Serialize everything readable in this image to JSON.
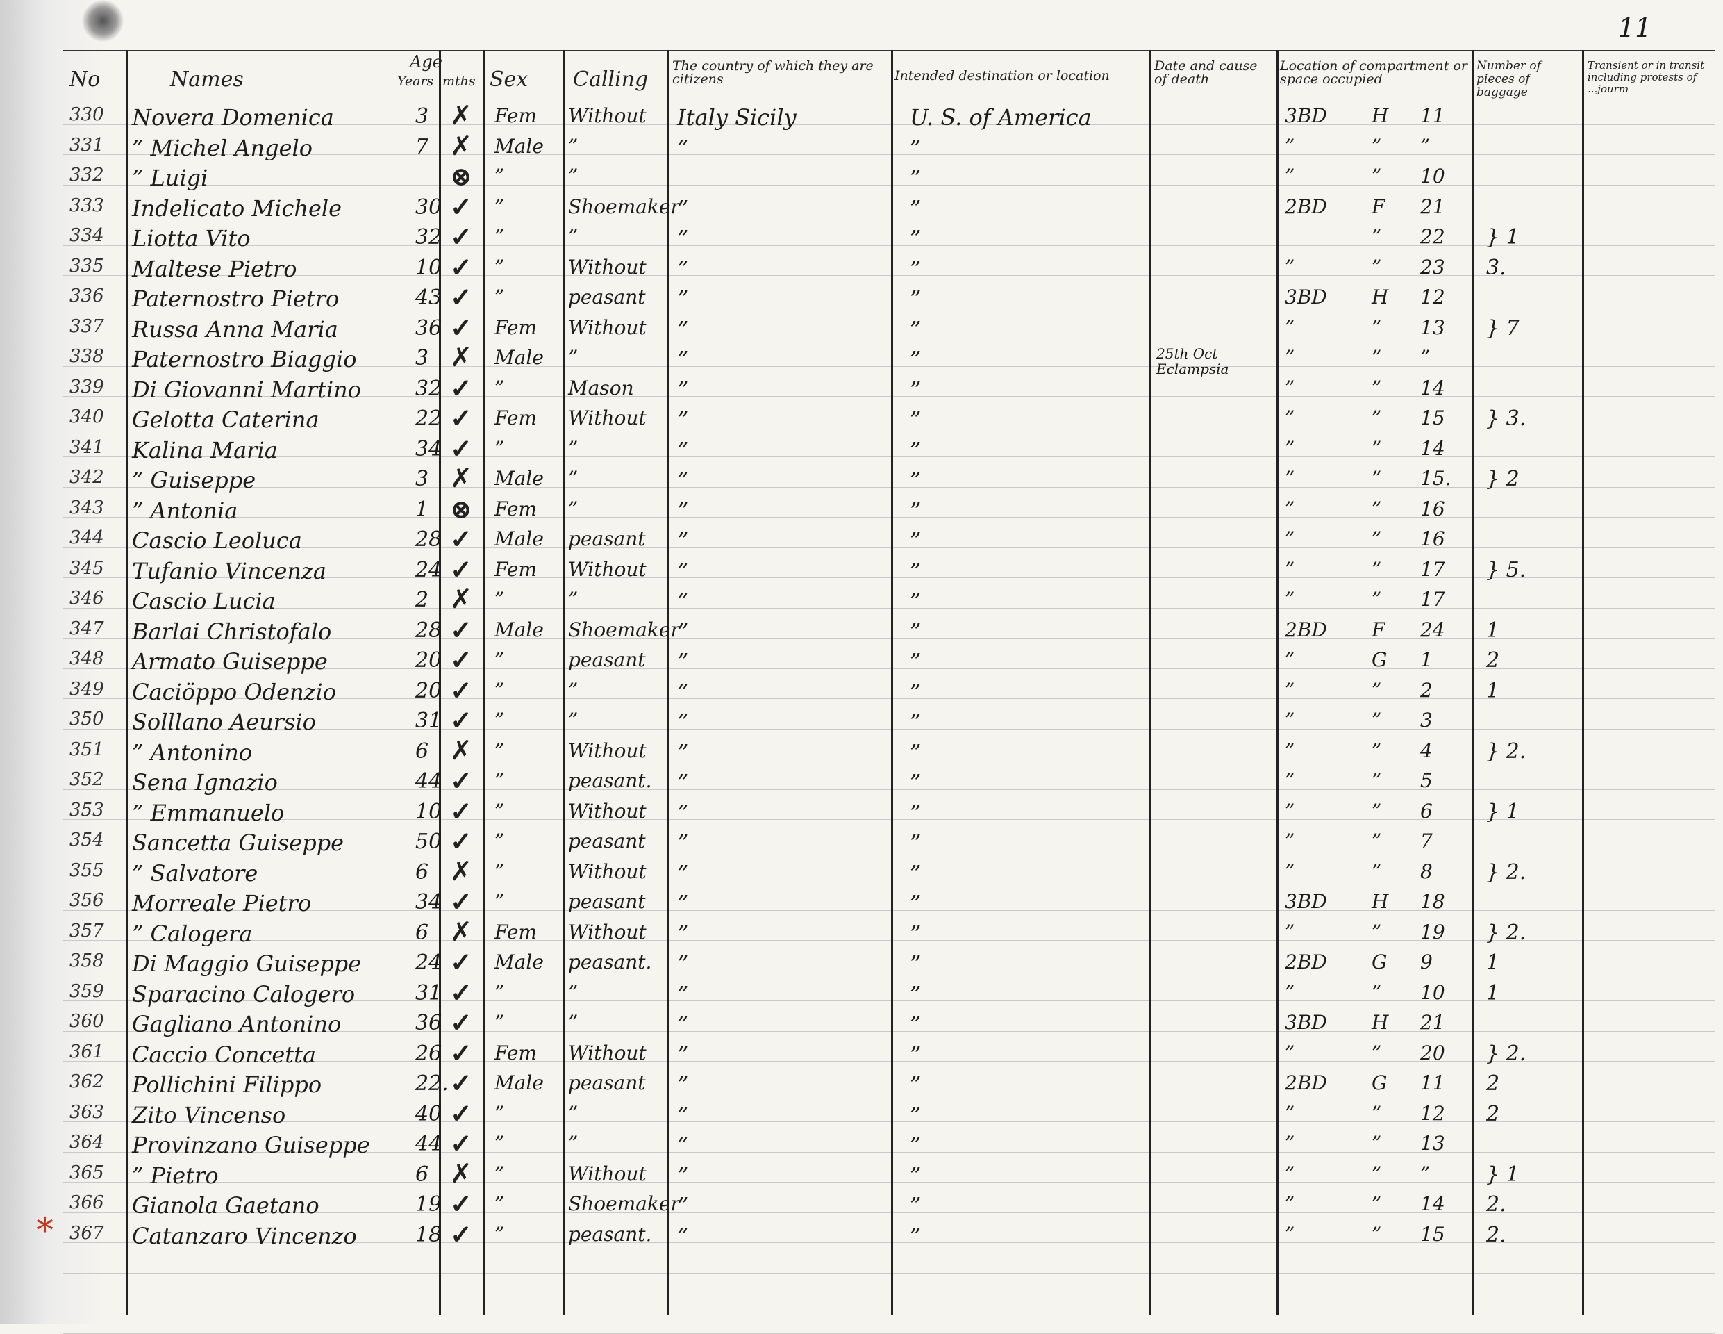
{
  "page_number": "11",
  "header": {
    "no": "No",
    "names": "Names",
    "age": "Age",
    "years": "Years",
    "mths": "mths",
    "sex": "Sex",
    "calling": "Calling",
    "citizens": "The country of which they are citizens",
    "destination": "Intended destination or location",
    "death": "Date and cause of death",
    "location": "Location of compartment or space occupied",
    "pieces": "Number of pieces of baggage",
    "transient": "Transient or in transit including protests of ...jourm"
  },
  "annotation_mark": "*",
  "rows": [
    {
      "no": "330",
      "name": "Novera Domenica",
      "age": "3",
      "mark": "✗",
      "sex": "Fem",
      "calling": "Without",
      "citizen": "Italy Sicily",
      "dest": "U. S. of America",
      "death": "",
      "loc": "3BD",
      "sec": "H",
      "num": "11",
      "pieces": ""
    },
    {
      "no": "331",
      "name": "” Michel Angelo",
      "age": "7",
      "mark": "✗",
      "sex": "Male",
      "calling": "”",
      "citizen": "”",
      "dest": "”",
      "death": "",
      "loc": "”",
      "sec": "”",
      "num": "”",
      "pieces": ""
    },
    {
      "no": "332",
      "name": "” Luigi",
      "age": "",
      "mark": "⊗",
      "sex": "”",
      "calling": "”",
      "citizen": "",
      "dest": "”",
      "death": "",
      "loc": "”",
      "sec": "”",
      "num": "10",
      "pieces": ""
    },
    {
      "no": "333",
      "name": "Indelicato Michele",
      "age": "30",
      "mark": "✓",
      "sex": "”",
      "calling": "Shoemaker",
      "citizen": "”",
      "dest": "”",
      "death": "",
      "loc": "2BD",
      "sec": "F",
      "num": "21",
      "pieces": ""
    },
    {
      "no": "334",
      "name": "Liotta Vito",
      "age": "32",
      "mark": "✓",
      "sex": "”",
      "calling": "”",
      "citizen": "”",
      "dest": "”",
      "death": "",
      "loc": "",
      "sec": "”",
      "num": "22",
      "pieces": "} 1"
    },
    {
      "no": "335",
      "name": "Maltese Pietro",
      "age": "10",
      "mark": "✓",
      "sex": "”",
      "calling": "Without",
      "citizen": "”",
      "dest": "”",
      "death": "",
      "loc": "”",
      "sec": "”",
      "num": "23",
      "pieces": "3."
    },
    {
      "no": "336",
      "name": "Paternostro Pietro",
      "age": "43",
      "mark": "✓",
      "sex": "”",
      "calling": "peasant",
      "citizen": "”",
      "dest": "”",
      "death": "",
      "loc": "3BD",
      "sec": "H",
      "num": "12",
      "pieces": ""
    },
    {
      "no": "337",
      "name": "Russa Anna Maria",
      "age": "36",
      "mark": "✓",
      "sex": "Fem",
      "calling": "Without",
      "citizen": "”",
      "dest": "”",
      "death": "",
      "loc": "”",
      "sec": "”",
      "num": "13",
      "pieces": "} 7"
    },
    {
      "no": "338",
      "name": "Paternostro Biaggio",
      "age": "3",
      "mark": "✗",
      "sex": "Male",
      "calling": "”",
      "citizen": "”",
      "dest": "”",
      "death": "25th Oct Eclampsia",
      "loc": "”",
      "sec": "”",
      "num": "”",
      "pieces": ""
    },
    {
      "no": "339",
      "name": "Di Giovanni Martino",
      "age": "32",
      "mark": "✓",
      "sex": "”",
      "calling": "Mason",
      "citizen": "”",
      "dest": "”",
      "death": "",
      "loc": "”",
      "sec": "”",
      "num": "14",
      "pieces": ""
    },
    {
      "no": "340",
      "name": "Gelotta Caterina",
      "age": "22",
      "mark": "✓",
      "sex": "Fem",
      "calling": "Without",
      "citizen": "”",
      "dest": "”",
      "death": "",
      "loc": "”",
      "sec": "”",
      "num": "15",
      "pieces": "} 3."
    },
    {
      "no": "341",
      "name": "Kalina Maria",
      "age": "34",
      "mark": "✓",
      "sex": "”",
      "calling": "”",
      "citizen": "”",
      "dest": "”",
      "death": "",
      "loc": "”",
      "sec": "”",
      "num": "14",
      "pieces": ""
    },
    {
      "no": "342",
      "name": "” Guiseppe",
      "age": "3",
      "mark": "✗",
      "sex": "Male",
      "calling": "”",
      "citizen": "”",
      "dest": "”",
      "death": "",
      "loc": "”",
      "sec": "”",
      "num": "15.",
      "pieces": "} 2"
    },
    {
      "no": "343",
      "name": "” Antonia",
      "age": "1",
      "mark": "⊗",
      "sex": "Fem",
      "calling": "”",
      "citizen": "”",
      "dest": "”",
      "death": "",
      "loc": "”",
      "sec": "”",
      "num": "16",
      "pieces": ""
    },
    {
      "no": "344",
      "name": "Cascio Leoluca",
      "age": "28",
      "mark": "✓",
      "sex": "Male",
      "calling": "peasant",
      "citizen": "”",
      "dest": "”",
      "death": "",
      "loc": "”",
      "sec": "”",
      "num": "16",
      "pieces": ""
    },
    {
      "no": "345",
      "name": "Tufanio Vincenza",
      "age": "24",
      "mark": "✓",
      "sex": "Fem",
      "calling": "Without",
      "citizen": "”",
      "dest": "”",
      "death": "",
      "loc": "”",
      "sec": "”",
      "num": "17",
      "pieces": "} 5."
    },
    {
      "no": "346",
      "name": "Cascio Lucia",
      "age": "2",
      "mark": "✗",
      "sex": "”",
      "calling": "”",
      "citizen": "”",
      "dest": "”",
      "death": "",
      "loc": "”",
      "sec": "”",
      "num": "17",
      "pieces": ""
    },
    {
      "no": "347",
      "name": "Barlai Christofalo",
      "age": "28",
      "mark": "✓",
      "sex": "Male",
      "calling": "Shoemaker",
      "citizen": "”",
      "dest": "”",
      "death": "",
      "loc": "2BD",
      "sec": "F",
      "num": "24",
      "pieces": "1"
    },
    {
      "no": "348",
      "name": "Armato Guiseppe",
      "age": "20",
      "mark": "✓",
      "sex": "”",
      "calling": "peasant",
      "citizen": "”",
      "dest": "”",
      "death": "",
      "loc": "”",
      "sec": "G",
      "num": "1",
      "pieces": "2"
    },
    {
      "no": "349",
      "name": "Caciöppo Odenzio",
      "age": "20",
      "mark": "✓",
      "sex": "”",
      "calling": "”",
      "citizen": "”",
      "dest": "”",
      "death": "",
      "loc": "”",
      "sec": "”",
      "num": "2",
      "pieces": "1"
    },
    {
      "no": "350",
      "name": "Solllano Aeursio",
      "age": "31",
      "mark": "✓",
      "sex": "”",
      "calling": "”",
      "citizen": "”",
      "dest": "”",
      "death": "",
      "loc": "”",
      "sec": "”",
      "num": "3",
      "pieces": ""
    },
    {
      "no": "351",
      "name": "” Antonino",
      "age": "6",
      "mark": "✗",
      "sex": "”",
      "calling": "Without",
      "citizen": "”",
      "dest": "”",
      "death": "",
      "loc": "”",
      "sec": "”",
      "num": "4",
      "pieces": "} 2."
    },
    {
      "no": "352",
      "name": "Sena Ignazio",
      "age": "44",
      "mark": "✓",
      "sex": "”",
      "calling": "peasant.",
      "citizen": "”",
      "dest": "”",
      "death": "",
      "loc": "”",
      "sec": "”",
      "num": "5",
      "pieces": ""
    },
    {
      "no": "353",
      "name": "” Emmanuelo",
      "age": "10",
      "mark": "✓",
      "sex": "”",
      "calling": "Without",
      "citizen": "”",
      "dest": "”",
      "death": "",
      "loc": "”",
      "sec": "”",
      "num": "6",
      "pieces": "} 1"
    },
    {
      "no": "354",
      "name": "Sancetta Guiseppe",
      "age": "50",
      "mark": "✓",
      "sex": "”",
      "calling": "peasant",
      "citizen": "”",
      "dest": "”",
      "death": "",
      "loc": "”",
      "sec": "”",
      "num": "7",
      "pieces": ""
    },
    {
      "no": "355",
      "name": "” Salvatore",
      "age": "6",
      "mark": "✗",
      "sex": "”",
      "calling": "Without",
      "citizen": "”",
      "dest": "”",
      "death": "",
      "loc": "”",
      "sec": "”",
      "num": "8",
      "pieces": "} 2."
    },
    {
      "no": "356",
      "name": "Morreale Pietro",
      "age": "34",
      "mark": "✓",
      "sex": "”",
      "calling": "peasant",
      "citizen": "”",
      "dest": "”",
      "death": "",
      "loc": "3BD",
      "sec": "H",
      "num": "18",
      "pieces": ""
    },
    {
      "no": "357",
      "name": "” Calogera",
      "age": "6",
      "mark": "✗",
      "sex": "Fem",
      "calling": "Without",
      "citizen": "”",
      "dest": "”",
      "death": "",
      "loc": "”",
      "sec": "”",
      "num": "19",
      "pieces": "} 2."
    },
    {
      "no": "358",
      "name": "Di Maggio Guiseppe",
      "age": "24",
      "mark": "✓",
      "sex": "Male",
      "calling": "peasant.",
      "citizen": "”",
      "dest": "”",
      "death": "",
      "loc": "2BD",
      "sec": "G",
      "num": "9",
      "pieces": "1"
    },
    {
      "no": "359",
      "name": "Sparacino Calogero",
      "age": "31",
      "mark": "✓",
      "sex": "”",
      "calling": "”",
      "citizen": "”",
      "dest": "”",
      "death": "",
      "loc": "”",
      "sec": "”",
      "num": "10",
      "pieces": "1"
    },
    {
      "no": "360",
      "name": "Gagliano Antonino",
      "age": "36",
      "mark": "✓",
      "sex": "”",
      "calling": "”",
      "citizen": "”",
      "dest": "”",
      "death": "",
      "loc": "3BD",
      "sec": "H",
      "num": "21",
      "pieces": ""
    },
    {
      "no": "361",
      "name": "Caccio Concetta",
      "age": "26",
      "mark": "✓",
      "sex": "Fem",
      "calling": "Without",
      "citizen": "”",
      "dest": "”",
      "death": "",
      "loc": "”",
      "sec": "”",
      "num": "20",
      "pieces": "} 2."
    },
    {
      "no": "362",
      "name": "Pollichini Filippo",
      "age": "22.",
      "mark": "✓",
      "sex": "Male",
      "calling": "peasant",
      "citizen": "”",
      "dest": "”",
      "death": "",
      "loc": "2BD",
      "sec": "G",
      "num": "11",
      "pieces": "2"
    },
    {
      "no": "363",
      "name": "Zito Vincenso",
      "age": "40",
      "mark": "✓",
      "sex": "”",
      "calling": "”",
      "citizen": "”",
      "dest": "”",
      "death": "",
      "loc": "”",
      "sec": "”",
      "num": "12",
      "pieces": "2"
    },
    {
      "no": "364",
      "name": "Provinzano Guiseppe",
      "age": "44",
      "mark": "✓",
      "sex": "”",
      "calling": "”",
      "citizen": "”",
      "dest": "”",
      "death": "",
      "loc": "”",
      "sec": "”",
      "num": "13",
      "pieces": ""
    },
    {
      "no": "365",
      "name": "” Pietro",
      "age": "6",
      "mark": "✗",
      "sex": "”",
      "calling": "Without",
      "citizen": "”",
      "dest": "”",
      "death": "",
      "loc": "”",
      "sec": "”",
      "num": "”",
      "pieces": "} 1"
    },
    {
      "no": "366",
      "name": "Gianola Gaetano",
      "age": "19",
      "mark": "✓",
      "sex": "”",
      "calling": "Shoemaker",
      "citizen": "”",
      "dest": "”",
      "death": "",
      "loc": "”",
      "sec": "”",
      "num": "14",
      "pieces": "2."
    },
    {
      "no": "367",
      "name": "Catanzaro Vincenzo",
      "age": "18",
      "mark": "✓",
      "sex": "”",
      "calling": "peasant.",
      "citizen": "”",
      "dest": "”",
      "death": "",
      "loc": "”",
      "sec": "”",
      "num": "15",
      "pieces": "2."
    }
  ]
}
